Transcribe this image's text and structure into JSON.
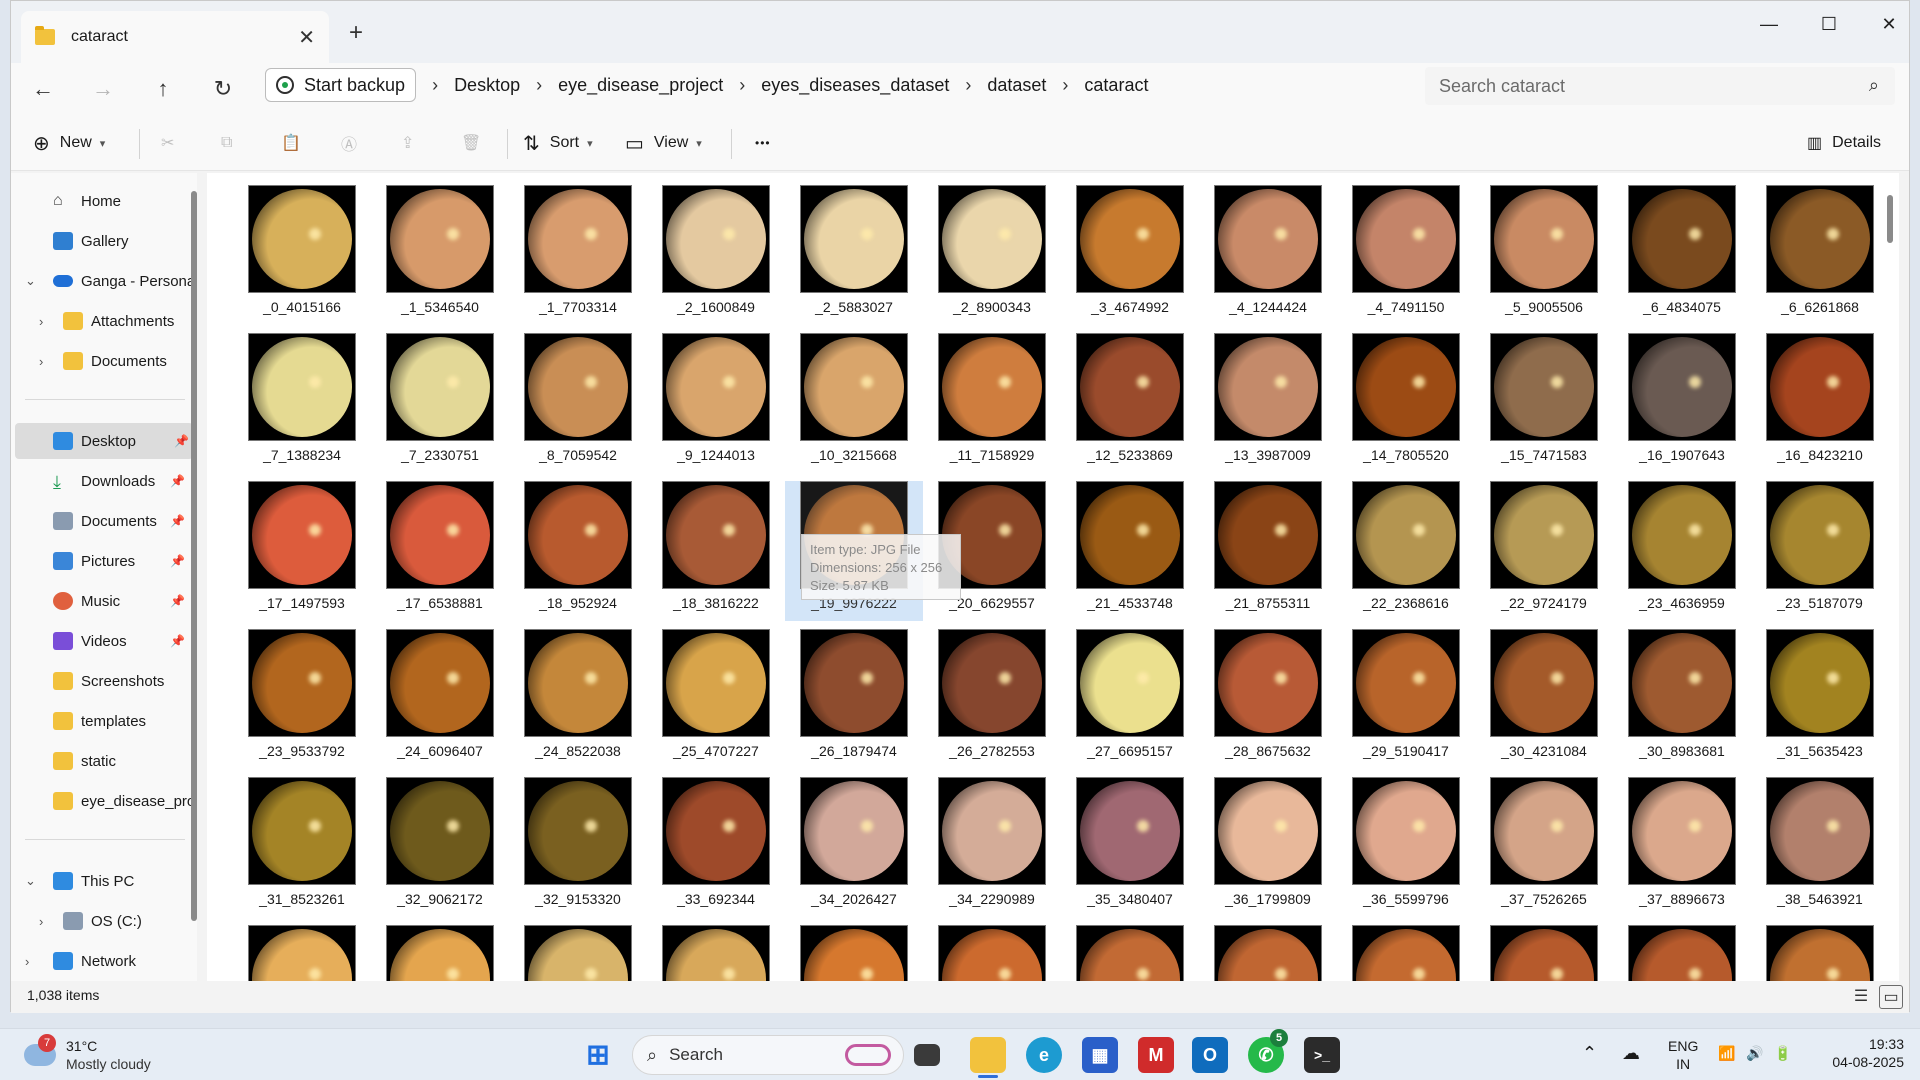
{
  "window": {
    "tab_title": "cataract",
    "new_tab": "+",
    "minimize": "—",
    "maximize": "☐",
    "close": "✕"
  },
  "address": {
    "backup_label": "Start backup",
    "breadcrumbs": [
      "Desktop",
      "eye_disease_project",
      "eyes_diseases_dataset",
      "dataset",
      "cataract"
    ],
    "search_placeholder": "Search cataract"
  },
  "toolbar": {
    "new_label": "New",
    "sort_label": "Sort",
    "view_label": "View",
    "more_label": "•••",
    "details_label": "Details"
  },
  "sidebar": {
    "items": [
      {
        "label": "Home"
      },
      {
        "label": "Gallery"
      },
      {
        "label": "Ganga - Persona"
      },
      {
        "label": "Attachments"
      },
      {
        "label": "Documents"
      },
      {
        "label": "Desktop"
      },
      {
        "label": "Downloads"
      },
      {
        "label": "Documents"
      },
      {
        "label": "Pictures"
      },
      {
        "label": "Music"
      },
      {
        "label": "Videos"
      },
      {
        "label": "Screenshots"
      },
      {
        "label": "templates"
      },
      {
        "label": "static"
      },
      {
        "label": "eye_disease_pro"
      },
      {
        "label": "This PC"
      },
      {
        "label": "OS (C:)"
      },
      {
        "label": "Network"
      }
    ]
  },
  "files": [
    {
      "name": "_0_4015166",
      "color": "#d7b05a"
    },
    {
      "name": "_1_5346540",
      "color": "#d79a6a"
    },
    {
      "name": "_1_7703314",
      "color": "#d89c6e"
    },
    {
      "name": "_2_1600849",
      "color": "#e4c9a0"
    },
    {
      "name": "_2_5883027",
      "color": "#ead4a6"
    },
    {
      "name": "_2_8900343",
      "color": "#ead6ab"
    },
    {
      "name": "_3_4674992",
      "color": "#c77a2e"
    },
    {
      "name": "_4_1244424",
      "color": "#c98a68"
    },
    {
      "name": "_4_7491150",
      "color": "#c48469"
    },
    {
      "name": "_5_9005506",
      "color": "#c98a63"
    },
    {
      "name": "_6_4834075",
      "color": "#7a4a1e"
    },
    {
      "name": "_6_6261868",
      "color": "#8b5a26"
    },
    {
      "name": "_7_1388234",
      "color": "#e5da92"
    },
    {
      "name": "_7_2330751",
      "color": "#e3d897"
    },
    {
      "name": "_8_7059542",
      "color": "#c98e55"
    },
    {
      "name": "_9_1244013",
      "color": "#d9a56c"
    },
    {
      "name": "_10_3215668",
      "color": "#d9a56b"
    },
    {
      "name": "_11_7158929",
      "color": "#cf7d3e"
    },
    {
      "name": "_12_5233869",
      "color": "#9a4b2c"
    },
    {
      "name": "_13_3987009",
      "color": "#c48a6a"
    },
    {
      "name": "_14_7805520",
      "color": "#9c4b14"
    },
    {
      "name": "_15_7471583",
      "color": "#8f6c4c"
    },
    {
      "name": "_16_1907643",
      "color": "#6a5a52"
    },
    {
      "name": "_16_8423210",
      "color": "#a5441e"
    },
    {
      "name": "_17_1497593",
      "color": "#dd5c3c"
    },
    {
      "name": "_17_6538881",
      "color": "#d95a3c"
    },
    {
      "name": "_18_952924",
      "color": "#b85a2e"
    },
    {
      "name": "_18_3816222",
      "color": "#a85a36"
    },
    {
      "name": "_19_9976222",
      "color": "#b86a2a"
    },
    {
      "name": "_20_6629557",
      "color": "#8a4626"
    },
    {
      "name": "_21_4533748",
      "color": "#9a5a14"
    },
    {
      "name": "_21_8755311",
      "color": "#8a4416"
    },
    {
      "name": "_22_2368616",
      "color": "#b49550"
    },
    {
      "name": "_22_9724179",
      "color": "#b69a55"
    },
    {
      "name": "_23_4636959",
      "color": "#a68431"
    },
    {
      "name": "_23_5187079",
      "color": "#a6862f"
    },
    {
      "name": "_23_9533792",
      "color": "#b2661e"
    },
    {
      "name": "_24_6096407",
      "color": "#b2661e"
    },
    {
      "name": "_24_8522038",
      "color": "#c4873a"
    },
    {
      "name": "_25_4707227",
      "color": "#d8a44a"
    },
    {
      "name": "_26_1879474",
      "color": "#8e4c2e"
    },
    {
      "name": "_26_2782553",
      "color": "#86462e"
    },
    {
      "name": "_27_6695157",
      "color": "#ebe08e"
    },
    {
      "name": "_28_8675632",
      "color": "#b85a36"
    },
    {
      "name": "_29_5190417",
      "color": "#b8642a"
    },
    {
      "name": "_30_4231084",
      "color": "#a45a2a"
    },
    {
      "name": "_30_8983681",
      "color": "#9e5a30"
    },
    {
      "name": "_31_5635423",
      "color": "#a28320"
    },
    {
      "name": "_31_8523261",
      "color": "#a48426"
    },
    {
      "name": "_32_9062172",
      "color": "#6e5a1c"
    },
    {
      "name": "_32_9153320",
      "color": "#7a6020"
    },
    {
      "name": "_33_692344",
      "color": "#9e4a2a"
    },
    {
      "name": "_34_2026427",
      "color": "#d2a89a"
    },
    {
      "name": "_34_2290989",
      "color": "#d4ac98"
    },
    {
      "name": "_35_3480407",
      "color": "#a06872"
    },
    {
      "name": "_36_1799809",
      "color": "#e8b89a"
    },
    {
      "name": "_36_5599796",
      "color": "#e0a88e"
    },
    {
      "name": "_37_7526265",
      "color": "#d4a488"
    },
    {
      "name": "_37_8896673",
      "color": "#dba88c"
    },
    {
      "name": "_38_5463921",
      "color": "#b2806c"
    },
    {
      "name": "",
      "color": "#e6ae5a"
    },
    {
      "name": "",
      "color": "#e4a54e"
    },
    {
      "name": "",
      "color": "#d8b46a"
    },
    {
      "name": "",
      "color": "#d8a85a"
    },
    {
      "name": "",
      "color": "#d6782e"
    },
    {
      "name": "",
      "color": "#cc6a2e"
    },
    {
      "name": "",
      "color": "#c26a34"
    },
    {
      "name": "",
      "color": "#c06632"
    },
    {
      "name": "",
      "color": "#c46a30"
    },
    {
      "name": "",
      "color": "#b65a2c"
    },
    {
      "name": "",
      "color": "#b65a2c"
    },
    {
      "name": "",
      "color": "#c07030"
    }
  ],
  "tooltip": {
    "line1": "Item type: JPG File",
    "line2": "Dimensions: 256 x 256",
    "line3": "Size: 5.87 KB"
  },
  "status": {
    "item_count": "1,038 items"
  },
  "taskbar": {
    "weather_badge": "7",
    "temperature": "31°C",
    "condition": "Mostly cloudy",
    "search_label": "Search",
    "whatsapp_badge": "5",
    "lang_top": "ENG",
    "lang_bottom": "IN",
    "time": "19:33",
    "date": "04-08-2025"
  }
}
